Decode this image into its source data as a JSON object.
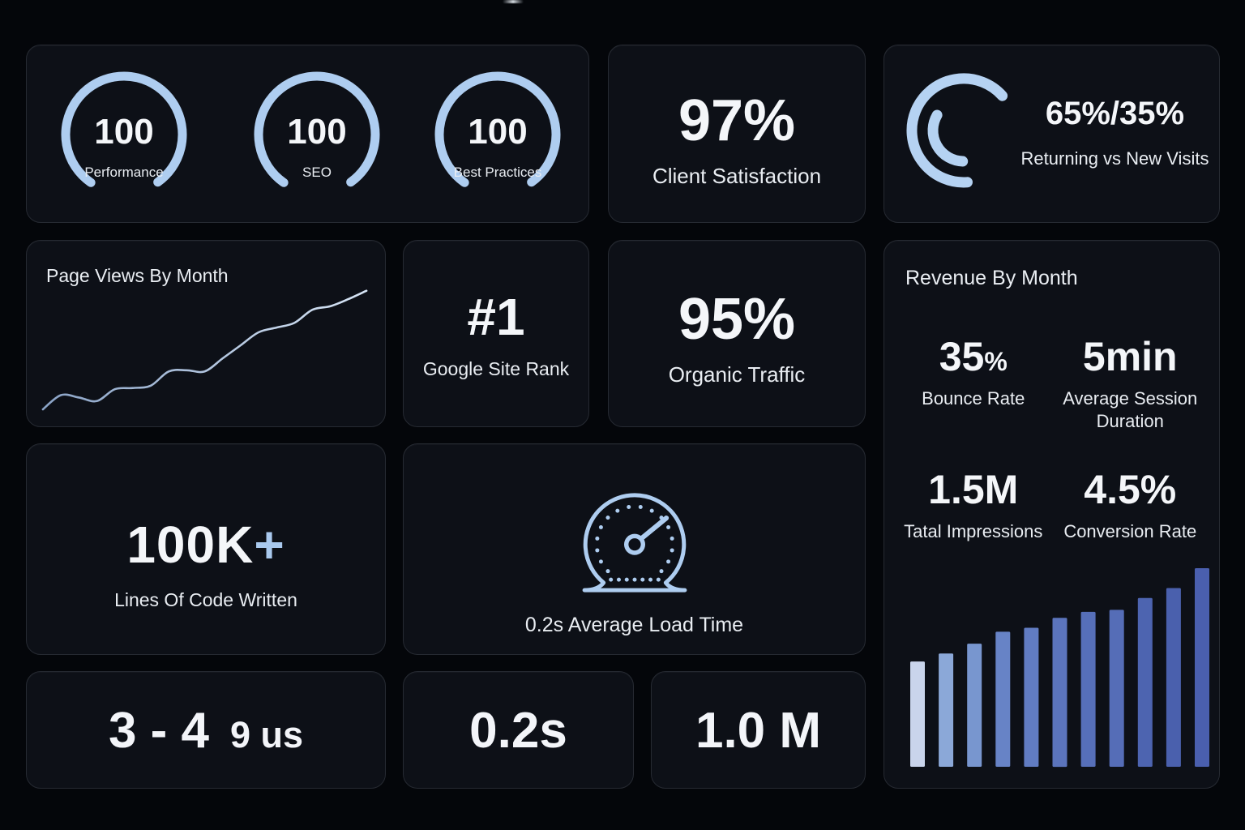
{
  "colors": {
    "accent": "#aecdf0",
    "page_bg": "#04060a",
    "card_bg": "#0d1017",
    "card_border": "#262a32",
    "value_text": "#f4f6f9",
    "label_text": "#e9edf2"
  },
  "lighthouse": {
    "gauges": [
      {
        "value": "100",
        "label": "Performance"
      },
      {
        "value": "100",
        "label": "SEO"
      },
      {
        "value": "100",
        "label": "Best Practices"
      }
    ]
  },
  "client_satisfaction": {
    "value": "97%",
    "label": "Client Satisfaction"
  },
  "visits_split": {
    "value": "65%/35%",
    "label": "Returning vs New Visits"
  },
  "page_views": {
    "title": "Page Views By Month"
  },
  "site_rank": {
    "value": "#1",
    "label": "Google Site Rank"
  },
  "organic_traffic": {
    "value": "95%",
    "label": "Organic Traffic"
  },
  "revenue": {
    "title": "Revenue By Month",
    "stats": [
      {
        "value": "35",
        "suffix": "%",
        "label": "Bounce Rate"
      },
      {
        "value": "5min",
        "suffix": "",
        "label": "Average Session Duration"
      },
      {
        "value": "1.5M",
        "suffix": "",
        "label": "Tatal Impressions"
      },
      {
        "value": "4.5%",
        "suffix": "",
        "label": "Conversion Rate"
      }
    ]
  },
  "lines_of_code": {
    "value": "100K",
    "plus": "+",
    "label": "Lines Of Code Written"
  },
  "load_time": {
    "label": "0.2s Average Load Time"
  },
  "bottom_metrics": {
    "range_primary": "3 - 4",
    "range_secondary": "9 us",
    "load": "0.2s",
    "visits": "1.0 M"
  },
  "chart_data": [
    {
      "id": "page-views",
      "type": "line",
      "title": "Page Views By Month",
      "x": "months (sequence, unlabeled)",
      "values": [
        0,
        12,
        10,
        7,
        17,
        18,
        20,
        32,
        33,
        32,
        43,
        54,
        65,
        69,
        73,
        84,
        87,
        93,
        100
      ],
      "value_scale": "relative index 0-100 (no axes/ticks shown)",
      "axes_visible": false,
      "grid": false,
      "legend": false,
      "line_color_start": "#8aa3c6",
      "line_color_end": "#d6e4f5"
    },
    {
      "id": "revenue-by-month",
      "type": "bar",
      "title": "Revenue By Month",
      "x": "months (11 bars, unlabeled)",
      "values": [
        53,
        57,
        62,
        68,
        70,
        75,
        78,
        79,
        85,
        90,
        100
      ],
      "value_scale": "relative index 0-100 (no axes/ticks shown)",
      "axes_visible": false,
      "grid": false,
      "legend": false,
      "bar_colors": [
        "#c9d4eb",
        "#8ba8d8",
        "#7896cf",
        "#6783c6",
        "#617cc2",
        "#5b74bc",
        "#566fb9",
        "#556db7",
        "#4d64b0",
        "#4a60ad",
        "#4a5fae"
      ]
    }
  ]
}
